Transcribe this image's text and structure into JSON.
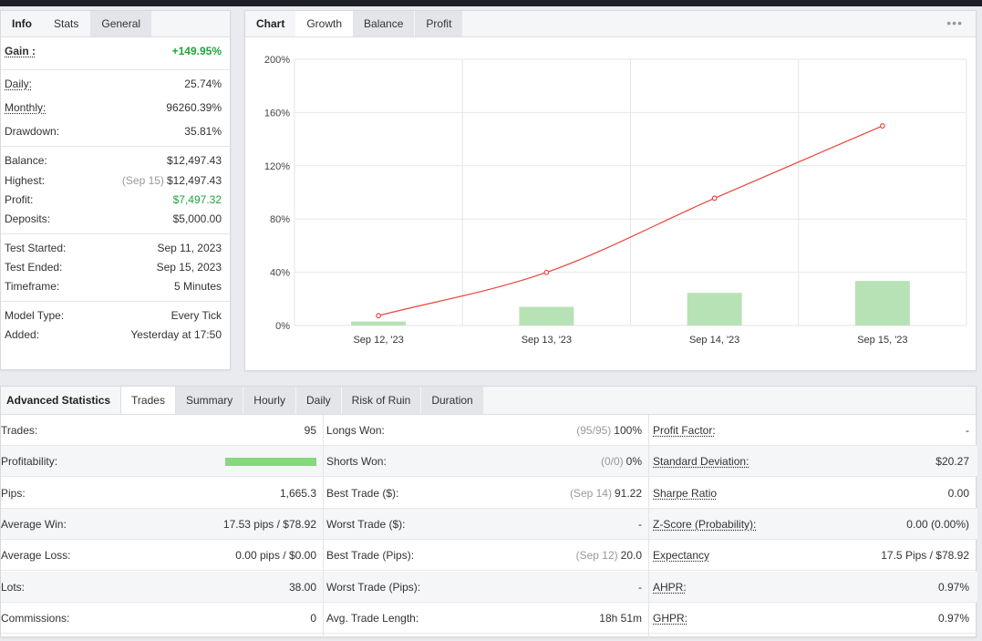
{
  "info": {
    "tabs": [
      "Info",
      "Stats",
      "General"
    ],
    "gain": {
      "label": "Gain :",
      "value": "+149.95%"
    },
    "rows": [
      {
        "label": "Daily:",
        "value": "25.74%"
      },
      {
        "label": "Monthly:",
        "value": "96260.39%"
      },
      {
        "label": "Drawdown:",
        "value": "35.81%"
      },
      {
        "label": "Balance:",
        "value": "$12,497.43"
      },
      {
        "label": "Highest:",
        "note": "(Sep 15)",
        "value": "$12,497.43"
      },
      {
        "label": "Profit:",
        "value": "$7,497.32"
      },
      {
        "label": "Deposits:",
        "value": "$5,000.00"
      },
      {
        "label": "Test Started:",
        "value": "Sep 11, 2023"
      },
      {
        "label": "Test Ended:",
        "value": "Sep 15, 2023"
      },
      {
        "label": "Timeframe:",
        "value": "5 Minutes"
      },
      {
        "label": "Model Type:",
        "value": "Every Tick"
      },
      {
        "label": "Added:",
        "value": "Yesterday at 17:50"
      }
    ]
  },
  "chart": {
    "tabs": [
      "Chart",
      "Growth",
      "Balance",
      "Profit"
    ],
    "menu_icon": "ellipsis-icon",
    "line_color": "#e8463c",
    "bar_color": "#b7e2b5"
  },
  "chart_data": {
    "type": "bar",
    "categories": [
      "Sep 12, '23",
      "Sep 13, '23",
      "Sep 14, '23",
      "Sep 15, '23"
    ],
    "series": [
      {
        "type": "bar",
        "values": [
          3,
          14,
          24.5,
          33.5
        ]
      },
      {
        "type": "line",
        "values": [
          7.4,
          39.9,
          95.6,
          149.95
        ]
      }
    ],
    "y_ticks": [
      "0%",
      "40%",
      "80%",
      "120%",
      "160%",
      "200%"
    ],
    "ylim": [
      0,
      200
    ],
    "grid": true
  },
  "advanced": {
    "tabs": [
      "Advanced Statistics",
      "Trades",
      "Summary",
      "Hourly",
      "Daily",
      "Risk of Ruin",
      "Duration"
    ],
    "col1": [
      {
        "label": "Trades:",
        "value": "95"
      },
      {
        "label": "Profitability:",
        "bar": 1.0
      },
      {
        "label": "Pips:",
        "value": "1,665.3"
      },
      {
        "label": "Average Win:",
        "value": "17.53 pips / $78.92"
      },
      {
        "label": "Average Loss:",
        "value": "0.00 pips / $0.00"
      },
      {
        "label": "Lots:",
        "value": "38.00"
      },
      {
        "label": "Commissions:",
        "value": "0"
      }
    ],
    "col2": [
      {
        "label": "Longs Won:",
        "note": "(95/95)",
        "value": "100%"
      },
      {
        "label": "Shorts Won:",
        "note": "(0/0)",
        "value": "0%"
      },
      {
        "label": "Best Trade ($):",
        "note": "(Sep 14)",
        "value": "91.22"
      },
      {
        "label": "Worst Trade ($):",
        "value": "-"
      },
      {
        "label": "Best Trade (Pips):",
        "note": "(Sep 12)",
        "value": "20.0"
      },
      {
        "label": "Worst Trade (Pips):",
        "value": "-"
      },
      {
        "label": "Avg. Trade Length:",
        "value": "18h 51m"
      }
    ],
    "col3": [
      {
        "label": "Profit Factor:",
        "value": "-"
      },
      {
        "label": "Standard Deviation:",
        "value": "$20.27"
      },
      {
        "label": "Sharpe Ratio",
        "value": "0.00"
      },
      {
        "label": "Z-Score (Probability):",
        "value": "0.00 (0.00%)"
      },
      {
        "label": "Expectancy",
        "value": "17.5 Pips / $78.92"
      },
      {
        "label": "AHPR:",
        "value": "0.97%"
      },
      {
        "label": "GHPR:",
        "value": "0.97%"
      }
    ]
  }
}
